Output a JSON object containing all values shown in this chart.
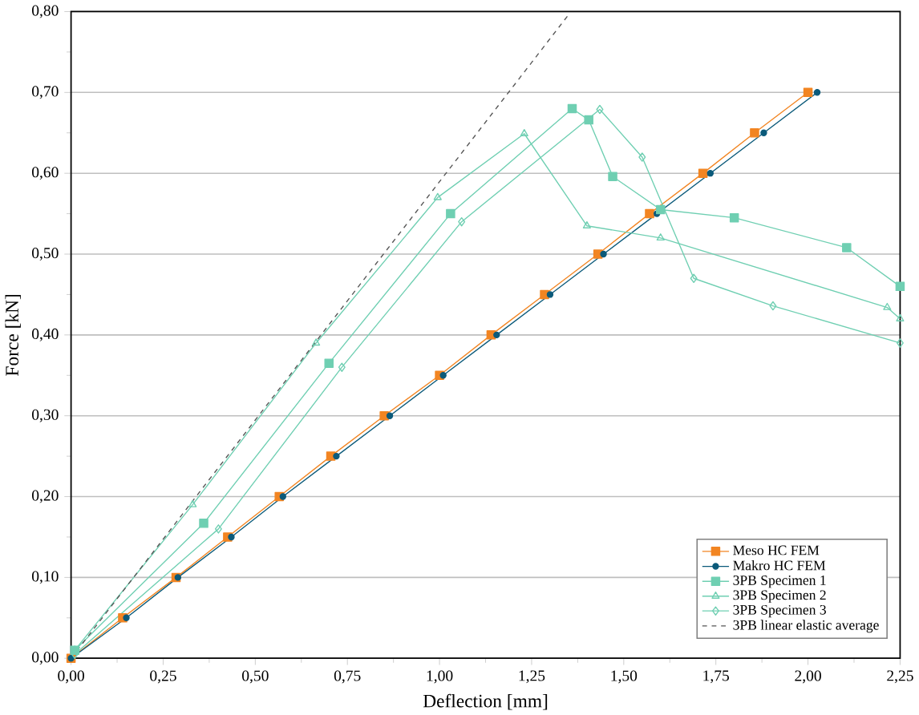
{
  "chart_data": {
    "type": "line",
    "xlabel": "Deflection [mm]",
    "ylabel": "Force [kN]",
    "xlim": [
      0,
      2.25
    ],
    "ylim": [
      0,
      0.8
    ],
    "xticks": [
      {
        "value": 0,
        "label": "0,00"
      },
      {
        "value": 0.25,
        "label": "0,25"
      },
      {
        "value": 0.5,
        "label": "0,50"
      },
      {
        "value": 0.75,
        "label": "0,75"
      },
      {
        "value": 1,
        "label": "1,00"
      },
      {
        "value": 1.25,
        "label": "1,25"
      },
      {
        "value": 1.5,
        "label": "1,50"
      },
      {
        "value": 1.75,
        "label": "1,75"
      },
      {
        "value": 2,
        "label": "2,00"
      },
      {
        "value": 2.25,
        "label": "2,25"
      }
    ],
    "yticks": [
      {
        "value": 0,
        "label": "0,00"
      },
      {
        "value": 0.1,
        "label": "0,10"
      },
      {
        "value": 0.2,
        "label": "0,20"
      },
      {
        "value": 0.3,
        "label": "0,30"
      },
      {
        "value": 0.4,
        "label": "0,40"
      },
      {
        "value": 0.5,
        "label": "0,50"
      },
      {
        "value": 0.6,
        "label": "0,60"
      },
      {
        "value": 0.7,
        "label": "0,70"
      },
      {
        "value": 0.8,
        "label": "0,80"
      }
    ],
    "grid": "y",
    "legend": "bottom right",
    "series": [
      {
        "name": "Meso HC FEM",
        "color": "#f28522",
        "marker": "square",
        "line_style": "solid",
        "x": [
          0,
          0.14,
          0.285,
          0.425,
          0.565,
          0.705,
          0.85,
          1.0,
          1.14,
          1.285,
          1.43,
          1.57,
          1.715,
          1.855,
          2.0
        ],
        "values": [
          0,
          0.05,
          0.1,
          0.15,
          0.2,
          0.25,
          0.3,
          0.35,
          0.4,
          0.45,
          0.5,
          0.55,
          0.6,
          0.65,
          0.7
        ]
      },
      {
        "name": "Makro HC FEM",
        "color": "#0b5a7a",
        "marker": "circle",
        "line_style": "solid",
        "x": [
          0,
          0.15,
          0.29,
          0.435,
          0.575,
          0.72,
          0.865,
          1.01,
          1.155,
          1.3,
          1.445,
          1.59,
          1.735,
          1.88,
          2.025
        ],
        "values": [
          0,
          0.05,
          0.1,
          0.15,
          0.2,
          0.25,
          0.3,
          0.35,
          0.4,
          0.45,
          0.5,
          0.55,
          0.6,
          0.65,
          0.7
        ]
      },
      {
        "name": "3PB Specimen 1",
        "color": "#6fcfb2",
        "marker": "square",
        "line_style": "solid",
        "x": [
          0.01,
          0.36,
          0.7,
          1.03,
          1.36,
          1.405,
          1.47,
          1.6,
          1.8,
          2.105,
          2.25
        ],
        "values": [
          0.01,
          0.167,
          0.365,
          0.55,
          0.68,
          0.666,
          0.596,
          0.555,
          0.545,
          0.508,
          0.46
        ]
      },
      {
        "name": "3PB Specimen 2",
        "color": "#6fcfb2",
        "marker": "triangle",
        "line_style": "solid",
        "x": [
          0.01,
          0.33,
          0.665,
          0.995,
          1.23,
          1.4,
          1.6,
          2.215,
          2.25
        ],
        "values": [
          0.01,
          0.19,
          0.39,
          0.57,
          0.649,
          0.535,
          0.52,
          0.434,
          0.42
        ]
      },
      {
        "name": "3PB Specimen 3",
        "color": "#6fcfb2",
        "marker": "diamond",
        "line_style": "solid",
        "x": [
          0.01,
          0.4,
          0.735,
          1.06,
          1.435,
          1.55,
          1.69,
          1.905,
          2.25
        ],
        "values": [
          0.005,
          0.16,
          0.36,
          0.54,
          0.679,
          0.62,
          0.47,
          0.436,
          0.39
        ]
      },
      {
        "name": "3PB linear elastic average",
        "color": "#555555",
        "marker": "none",
        "line_style": "dashed",
        "x": [
          0,
          1.35
        ],
        "values": [
          0,
          0.796
        ]
      }
    ]
  }
}
